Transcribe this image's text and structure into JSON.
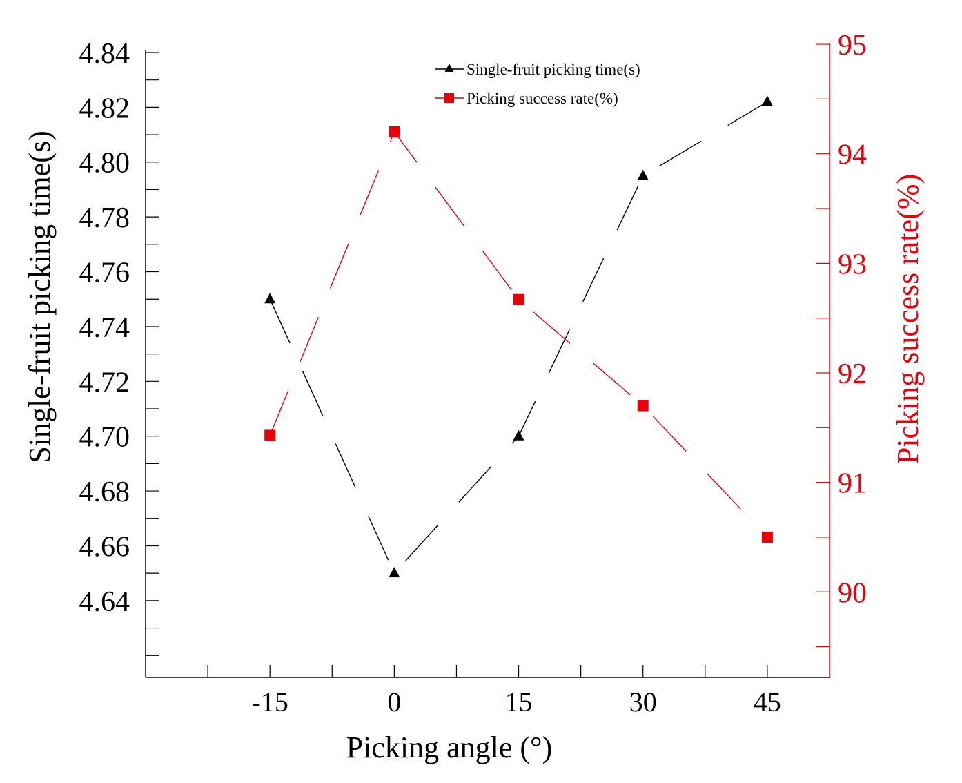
{
  "chart_data": {
    "type": "line",
    "title": "",
    "xlabel": "Picking angle (°)",
    "x": [
      -15,
      0,
      15,
      30,
      45
    ],
    "x_tick_labels": [
      "-15",
      "0",
      "15",
      "30",
      "45"
    ],
    "xlim": [
      -30,
      52.5
    ],
    "y_left": {
      "label": "Single-fruit picking time(s)",
      "lim": [
        4.612,
        4.841
      ],
      "ticks": [
        "4.84",
        "4.82",
        "4.80",
        "4.78",
        "4.76",
        "4.74",
        "4.72",
        "4.70",
        "4.68",
        "4.66",
        "4.64"
      ],
      "tick_values": [
        4.84,
        4.82,
        4.8,
        4.78,
        4.76,
        4.74,
        4.72,
        4.7,
        4.68,
        4.66,
        4.64
      ],
      "color": "#000000"
    },
    "y_right": {
      "label": "Picking success rate(%)",
      "lim": [
        89.22,
        94.95
      ],
      "ticks": [
        "95",
        "94",
        "93",
        "92",
        "91",
        "90"
      ],
      "tick_values": [
        95,
        94,
        93,
        92,
        91,
        90
      ],
      "color": "#e8000b"
    },
    "series": [
      {
        "name": "Single-fruit picking time(s)",
        "axis": "left",
        "marker": "triangle",
        "color": "#000000",
        "values": [
          4.75,
          4.65,
          4.7,
          4.795,
          4.822
        ]
      },
      {
        "name": "Picking success rate(%)",
        "axis": "right",
        "marker": "square",
        "color": "#e8000b",
        "values": [
          91.43,
          94.2,
          92.67,
          91.7,
          90.5
        ]
      }
    ],
    "grid": false,
    "legend_position": "top-center"
  }
}
